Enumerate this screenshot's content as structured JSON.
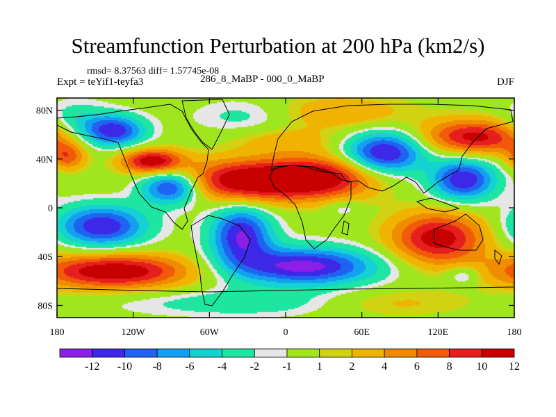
{
  "chart_data": {
    "type": "heatmap",
    "title": "Streamfunction Perturbation at 200 hPa (km2/s)",
    "stats_label": "rmsd= 8.37563 diff= 1.57745e-08",
    "left_label": "Expt = teYif1-teyfa3",
    "center_label": "286_8_MaBP - 000_0_MaBP",
    "right_label": "DJF",
    "x_range": [
      -180,
      180
    ],
    "y_range": [
      -90,
      90
    ],
    "x_ticks": [
      {
        "value": -180,
        "label": "180"
      },
      {
        "value": -120,
        "label": "120W"
      },
      {
        "value": -60,
        "label": "60W"
      },
      {
        "value": 0,
        "label": "0"
      },
      {
        "value": 60,
        "label": "60E"
      },
      {
        "value": 120,
        "label": "120E"
      },
      {
        "value": 180,
        "label": "180"
      }
    ],
    "y_ticks": [
      {
        "value": 80,
        "label": "80N"
      },
      {
        "value": 40,
        "label": "40N"
      },
      {
        "value": 0,
        "label": "0"
      },
      {
        "value": -40,
        "label": "40S"
      },
      {
        "value": -80,
        "label": "80S"
      }
    ],
    "contour_levels": [
      -12,
      -10,
      -8,
      -6,
      -4,
      -2,
      -1,
      1,
      2,
      4,
      6,
      8,
      10,
      12
    ],
    "colorbar_labels": [
      "-12",
      "-10",
      "-8",
      "-6",
      "-4",
      "-2",
      "-1",
      "1",
      "2",
      "4",
      "6",
      "8",
      "10",
      "12"
    ],
    "colors": [
      "#8c1ee6",
      "#3c28e6",
      "#1e64f0",
      "#14a0f0",
      "#14d2d2",
      "#1ee6a0",
      "#e6e6e6",
      "#a0e61e",
      "#d2d214",
      "#f0b400",
      "#f08c00",
      "#f05a0a",
      "#e61e1e",
      "#c80000"
    ],
    "field_anomalies": [
      {
        "lon": -135,
        "lat": 63,
        "value": -11.5,
        "spread_lon": 17,
        "spread_lat": 9
      },
      {
        "lon": -172,
        "lat": 42,
        "value": 7,
        "spread_lon": 10,
        "spread_lat": 8
      },
      {
        "lon": -105,
        "lat": 38,
        "value": 12,
        "spread_lon": 17,
        "spread_lat": 7
      },
      {
        "lon": -90,
        "lat": 17,
        "value": -12.5,
        "spread_lon": 17,
        "spread_lat": 10
      },
      {
        "lon": -145,
        "lat": -15,
        "value": -12,
        "spread_lon": 25,
        "spread_lat": 12
      },
      {
        "lon": -135,
        "lat": -52,
        "value": 12.5,
        "spread_lon": 42,
        "spread_lat": 10
      },
      {
        "lon": -30,
        "lat": 22,
        "value": 13,
        "spread_lon": 38,
        "spread_lat": 12
      },
      {
        "lon": 30,
        "lat": 25,
        "value": 10,
        "spread_lon": 30,
        "spread_lat": 12
      },
      {
        "lon": -35,
        "lat": -22,
        "value": -12,
        "spread_lon": 17,
        "spread_lat": 17
      },
      {
        "lon": 15,
        "lat": -48,
        "value": -13,
        "spread_lon": 40,
        "spread_lat": 11
      },
      {
        "lon": 78,
        "lat": 45,
        "value": -13,
        "spread_lon": 22,
        "spread_lat": 12
      },
      {
        "lon": 140,
        "lat": 23,
        "value": -12,
        "spread_lon": 18,
        "spread_lat": 12
      },
      {
        "lon": 150,
        "lat": 58,
        "value": 11,
        "spread_lon": 30,
        "spread_lat": 10
      },
      {
        "lon": 120,
        "lat": -25,
        "value": 11.5,
        "spread_lon": 26,
        "spread_lat": 15
      },
      {
        "lon": 140,
        "lat": -55,
        "value": -4,
        "spread_lon": 10,
        "spread_lat": 6
      },
      {
        "lon": 45,
        "lat": 0,
        "value": -2.5,
        "spread_lon": 10,
        "spread_lat": 5
      },
      {
        "lon": -165,
        "lat": 70,
        "value": -4,
        "spread_lon": 18,
        "spread_lat": 12
      },
      {
        "lon": -30,
        "lat": 75,
        "value": -3,
        "spread_lon": 30,
        "spread_lat": 10
      },
      {
        "lon": 40,
        "lat": 78,
        "value": 4,
        "spread_lon": 40,
        "spread_lat": 10
      },
      {
        "lon": -30,
        "lat": -78,
        "value": -3.5,
        "spread_lon": 70,
        "spread_lat": 8
      },
      {
        "lon": 80,
        "lat": -78,
        "value": 3,
        "spread_lon": 45,
        "spread_lat": 8
      },
      {
        "lon": 0,
        "lat": 55,
        "value": 3,
        "spread_lon": 30,
        "spread_lat": 8
      }
    ]
  }
}
